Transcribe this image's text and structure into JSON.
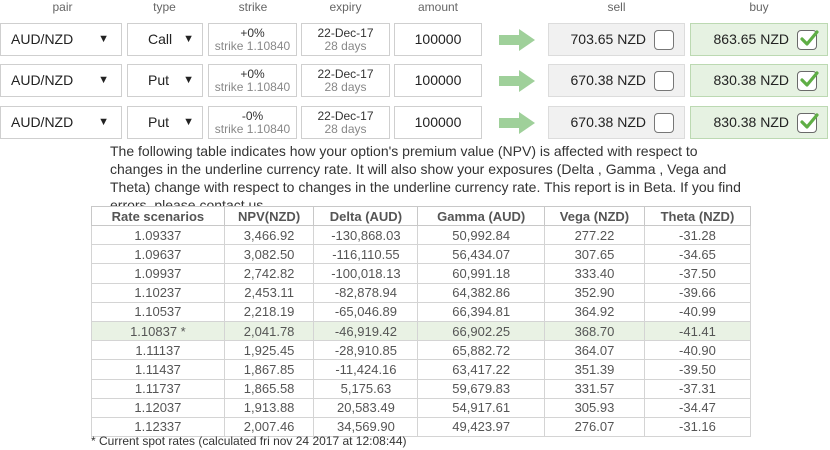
{
  "headers": {
    "pair": "pair",
    "type": "type",
    "strike": "strike",
    "expiry": "expiry",
    "amount": "amount",
    "sell": "sell",
    "buy": "buy"
  },
  "options": [
    {
      "pair": "AUD/NZD",
      "type": "Call",
      "strike_offset": "+0%",
      "strike": "strike 1.10840",
      "expiry_date": "22-Dec-17",
      "expiry_days": "28 days",
      "amount": "100000",
      "sell": "703.65 NZD",
      "sell_checked": false,
      "buy": "863.65 NZD",
      "buy_checked": true
    },
    {
      "pair": "AUD/NZD",
      "type": "Put",
      "strike_offset": "+0%",
      "strike": "strike 1.10840",
      "expiry_date": "22-Dec-17",
      "expiry_days": "28 days",
      "amount": "100000",
      "sell": "670.38 NZD",
      "sell_checked": false,
      "buy": "830.38 NZD",
      "buy_checked": true
    },
    {
      "pair": "AUD/NZD",
      "type": "Put",
      "strike_offset": "-0%",
      "strike": "strike 1.10840",
      "expiry_date": "22-Dec-17",
      "expiry_days": "28 days",
      "amount": "100000",
      "sell": "670.38 NZD",
      "sell_checked": false,
      "buy": "830.38 NZD",
      "buy_checked": true
    }
  ],
  "description": "The following table indicates how your option's premium value (NPV) is affected with respect to changes in the underline currency rate. It will also show your exposures (Delta , Gamma , Vega and Theta) change with respect to changes in the underline currency rate. This report is in Beta. If you find errors, please contact us.",
  "table": {
    "columns": [
      "Rate scenarios",
      "NPV(NZD)",
      "Delta (AUD)",
      "Gamma (AUD)",
      "Vega (NZD)",
      "Theta (NZD)"
    ],
    "rows": [
      [
        "1.09337",
        "3,466.92",
        "-130,868.03",
        "50,992.84",
        "277.22",
        "-31.28"
      ],
      [
        "1.09637",
        "3,082.50",
        "-116,110.55",
        "56,434.07",
        "307.65",
        "-34.65"
      ],
      [
        "1.09937",
        "2,742.82",
        "-100,018.13",
        "60,991.18",
        "333.40",
        "-37.50"
      ],
      [
        "1.10237",
        "2,453.11",
        "-82,878.94",
        "64,382.86",
        "352.90",
        "-39.66"
      ],
      [
        "1.10537",
        "2,218.19",
        "-65,046.89",
        "66,394.81",
        "364.92",
        "-40.99"
      ],
      [
        "1.10837 *",
        "2,041.78",
        "-46,919.42",
        "66,902.25",
        "368.70",
        "-41.41"
      ],
      [
        "1.11137",
        "1,925.45",
        "-28,910.85",
        "65,882.72",
        "364.07",
        "-40.90"
      ],
      [
        "1.11437",
        "1,867.85",
        "-11,424.16",
        "63,417.22",
        "351.39",
        "-39.50"
      ],
      [
        "1.11737",
        "1,865.58",
        "5,175.63",
        "59,679.83",
        "331.57",
        "-37.31"
      ],
      [
        "1.12037",
        "1,913.88",
        "20,583.49",
        "54,917.61",
        "305.93",
        "-34.47"
      ],
      [
        "1.12337",
        "2,007.46",
        "34,569.90",
        "49,423.97",
        "276.07",
        "-31.16"
      ]
    ],
    "current_row_index": 5
  },
  "footnote": "* Current spot rates (calculated fri nov 24 2017 at 12:08:44)",
  "icons": {
    "dropdown": "chevron-down-icon",
    "arrow": "arrow-right-icon",
    "check": "check-icon"
  },
  "colors": {
    "arrow": "#9fd09a",
    "buy_bg": "#e6f2e2",
    "sell_bg": "#f1f1f1",
    "current_row_bg": "#e9f2e4",
    "check": "#5fae45"
  }
}
